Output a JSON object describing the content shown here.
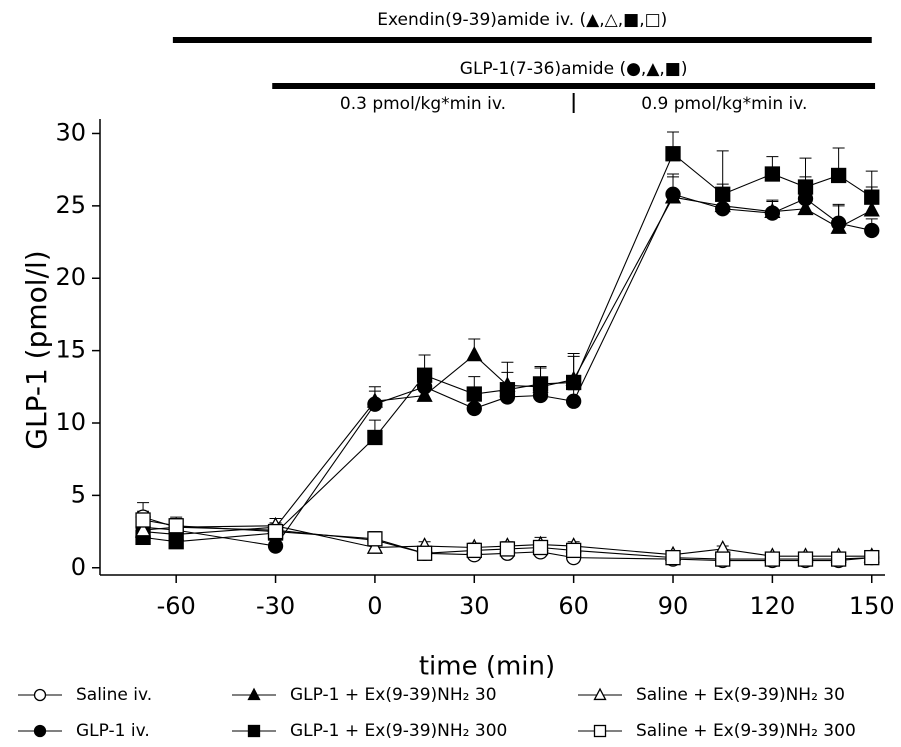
{
  "chart_data": {
    "type": "line",
    "xlabel": "time (min)",
    "ylabel": "GLP-1 (pmol/l)",
    "xlim": [
      -83,
      154
    ],
    "ylim": [
      -0.5,
      31
    ],
    "xticks": [
      -60,
      -30,
      0,
      30,
      60,
      90,
      120,
      150
    ],
    "yticks": [
      0,
      5,
      10,
      15,
      20,
      25,
      30
    ],
    "x": [
      -70,
      -60,
      -30,
      0,
      15,
      30,
      40,
      50,
      60,
      90,
      105,
      120,
      130,
      140,
      150
    ],
    "series": [
      {
        "name": "Saline iv.",
        "color": "#000000",
        "marker": "circle",
        "filled": false,
        "values": [
          3.5,
          2.8,
          2.6,
          1.9,
          1.0,
          0.9,
          1.0,
          1.1,
          0.7,
          0.6,
          0.5,
          0.5,
          0.5,
          0.5,
          0.7
        ],
        "errors": [
          1.0,
          0.6,
          0.5,
          0.5,
          0.3,
          0.3,
          0.3,
          0.3,
          0.2,
          0.2,
          0.2,
          0.2,
          0.2,
          0.2,
          0.2
        ]
      },
      {
        "name": "GLP-1 iv.",
        "color": "#000000",
        "marker": "circle",
        "filled": true,
        "values": [
          2.8,
          2.6,
          1.5,
          11.3,
          12.5,
          11.0,
          11.8,
          11.9,
          11.5,
          25.8,
          24.8,
          24.5,
          25.5,
          23.8,
          23.3
        ],
        "errors": [
          0.5,
          0.5,
          0.4,
          0.9,
          0.9,
          0.9,
          0.8,
          0.8,
          0.8,
          1.2,
          0.9,
          0.8,
          1.5,
          1.2,
          0.8
        ]
      },
      {
        "name": "GLP-1 + Ex(9-39)NH₂ 30",
        "color": "#000000",
        "marker": "triangle",
        "filled": true,
        "values": [
          2.5,
          2.3,
          2.8,
          11.5,
          11.9,
          14.7,
          12.6,
          12.5,
          13.0,
          25.6,
          25.0,
          24.6,
          24.8,
          23.5,
          24.7
        ],
        "errors": [
          0.6,
          0.6,
          0.6,
          1.0,
          1.0,
          1.1,
          1.6,
          1.3,
          1.6,
          1.6,
          1.5,
          0.8,
          1.3,
          1.6,
          1.6
        ]
      },
      {
        "name": "GLP-1 + Ex(9-39)NH₂ 300",
        "color": "#000000",
        "marker": "square",
        "filled": true,
        "values": [
          2.1,
          1.8,
          2.4,
          9.0,
          13.3,
          12.0,
          12.3,
          12.7,
          12.8,
          28.6,
          25.8,
          27.2,
          26.3,
          27.1,
          25.6
        ],
        "errors": [
          0.5,
          0.6,
          0.6,
          1.2,
          1.4,
          1.2,
          1.2,
          1.2,
          2.0,
          1.5,
          3.0,
          1.2,
          2.0,
          1.9,
          1.8
        ]
      },
      {
        "name": "Saline + Ex(9-39)NH₂ 30",
        "color": "#000000",
        "marker": "triangle",
        "filled": false,
        "values": [
          2.6,
          2.8,
          2.9,
          1.4,
          1.5,
          1.4,
          1.5,
          1.6,
          1.5,
          0.9,
          1.3,
          0.8,
          0.8,
          0.8,
          0.8
        ],
        "errors": [
          0.6,
          0.6,
          0.5,
          0.4,
          0.3,
          0.3,
          0.3,
          0.5,
          0.3,
          0.2,
          0.2,
          0.2,
          0.2,
          0.2,
          0.2
        ]
      },
      {
        "name": "Saline + Ex(9-39)NH₂ 300",
        "color": "#000000",
        "marker": "square",
        "filled": false,
        "values": [
          3.3,
          2.9,
          2.5,
          2.0,
          1.0,
          1.2,
          1.3,
          1.4,
          1.2,
          0.7,
          0.6,
          0.6,
          0.6,
          0.6,
          0.7
        ],
        "errors": [
          0.6,
          0.6,
          0.5,
          0.5,
          0.3,
          0.3,
          0.3,
          0.3,
          0.3,
          0.2,
          0.2,
          0.2,
          0.2,
          0.2,
          0.2
        ]
      }
    ],
    "infusions": [
      {
        "label": "Exendin(9-39)amide iv. (▲,△,■,□)",
        "start": -61,
        "end": 150
      },
      {
        "label": "GLP-1(7-36)amide (●,▲,■)",
        "start": -31,
        "end": 151
      }
    ],
    "doses": [
      {
        "label": "0.3 pmol/kg*min iv.",
        "start": -31,
        "end": 60
      },
      {
        "label": "0.9 pmol/kg*min iv.",
        "start": 60,
        "end": 151
      }
    ]
  }
}
